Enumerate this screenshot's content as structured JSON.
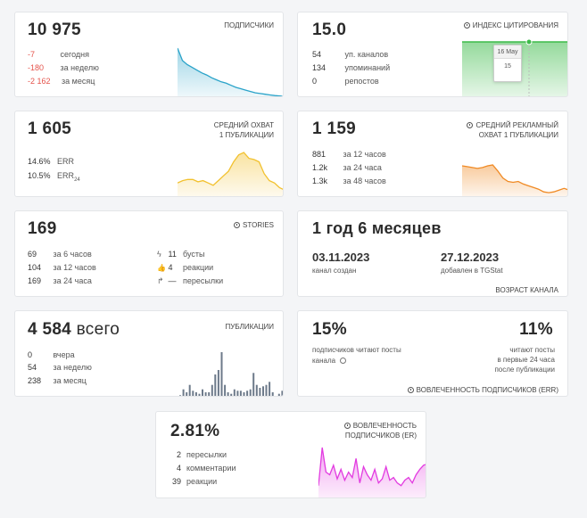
{
  "subscribers": {
    "value": "10 975",
    "caption": "ПОДПИСЧИКИ",
    "rows": [
      {
        "v": "-7",
        "l": "сегодня"
      },
      {
        "v": "-180",
        "l": "за неделю"
      },
      {
        "v": "-2 162",
        "l": "за месяц"
      }
    ],
    "chart_data": {
      "type": "area",
      "color": "#2aa3c9",
      "values": [
        70,
        52,
        46,
        42,
        38,
        34,
        31,
        27,
        24,
        21,
        19,
        16,
        13,
        11,
        9,
        7,
        5,
        4,
        3,
        2,
        1,
        0.5,
        0
      ]
    }
  },
  "citation": {
    "value": "15.0",
    "caption": "ИНДЕКС ЦИТИРОВАНИЯ",
    "icon": "info-icon",
    "rows": [
      {
        "v": "54",
        "l": "уп. каналов"
      },
      {
        "v": "134",
        "l": "упоминаний"
      },
      {
        "v": "0",
        "l": "репостов"
      }
    ],
    "tooltip_date": "16 May",
    "tooltip_value": "15",
    "color": "#3dbb4a"
  },
  "reach": {
    "value": "1 605",
    "caption_line1": "СРЕДНИЙ ОХВАТ",
    "caption_line2": "1 ПУБЛИКАЦИИ",
    "rows": [
      {
        "v": "14.6%",
        "l": "ERR"
      },
      {
        "v": "10.5%",
        "l": "ERR",
        "sub": "24"
      }
    ],
    "chart_data": {
      "type": "area",
      "color": "#f2c12e",
      "values": [
        12,
        14,
        15,
        15,
        13,
        14,
        12,
        10,
        14,
        18,
        22,
        30,
        36,
        38,
        33,
        32,
        30,
        20,
        14,
        12,
        8,
        6
      ]
    }
  },
  "ad_reach": {
    "value": "1 159",
    "caption_line1": "СРЕДНИЙ РЕКЛАМНЫЙ",
    "caption_line2": "ОХВАТ 1 ПУБЛИКАЦИИ",
    "icon": "info-icon",
    "rows": [
      {
        "v": "881",
        "l": "за 12 часов"
      },
      {
        "v": "1.2k",
        "l": "за 24 часа"
      },
      {
        "v": "1.3k",
        "l": "за 48 часов"
      }
    ],
    "chart_data": {
      "type": "area",
      "color": "#f08a24",
      "values": [
        36,
        35,
        34,
        33,
        34,
        36,
        37,
        30,
        22,
        18,
        17,
        18,
        15,
        13,
        11,
        9,
        6,
        5,
        6,
        8,
        10,
        8
      ]
    }
  },
  "stories": {
    "value": "169",
    "caption": "STORIES",
    "icon": "info-icon",
    "rows": [
      {
        "v": "69",
        "l": "за 6 часов"
      },
      {
        "v": "104",
        "l": "за 12 часов"
      },
      {
        "v": "169",
        "l": "за 24 часа"
      }
    ],
    "rows_right": [
      {
        "icon": "bolt-icon",
        "glyph": "ϟ",
        "v": "11",
        "l": "бусты"
      },
      {
        "icon": "thumbs-up-icon",
        "glyph": "👍",
        "v": "4",
        "l": "реакции"
      },
      {
        "icon": "forward-icon",
        "glyph": "↱",
        "v": "—",
        "l": "пересылки"
      }
    ]
  },
  "age": {
    "value": "1 год 6 месяцев",
    "created_date": "03.11.2023",
    "created_label": "канал создан",
    "added_date": "27.12.2023",
    "added_label": "добавлен в TGStat",
    "caption": "ВОЗРАСТ КАНАЛА"
  },
  "posts": {
    "value": "4 584",
    "suffix": " всего",
    "caption": "ПУБЛИКАЦИИ",
    "rows": [
      {
        "v": "0",
        "l": "вчера"
      },
      {
        "v": "54",
        "l": "за неделю"
      },
      {
        "v": "238",
        "l": "за месяц"
      }
    ],
    "chart_data": {
      "type": "bar",
      "color": "#6d7a8a",
      "values": [
        1,
        5,
        3,
        8,
        4,
        3,
        2,
        5,
        3,
        3,
        8,
        15,
        18,
        30,
        8,
        3,
        2,
        5,
        4,
        4,
        3,
        4,
        5,
        16,
        8,
        6,
        7,
        8,
        10,
        3,
        0,
        2,
        4
      ]
    }
  },
  "engagement_err": {
    "left_value": "15%",
    "left_label_line1": "подписчиков читают посты",
    "left_label_line2": "канала",
    "right_value": "11%",
    "right_label_line1": "читают посты",
    "right_label_line2": "в первые 24 часа",
    "right_label_line3": "после публикации",
    "caption": "ВОВЛЕЧЕННОСТЬ ПОДПИСЧИКОВ (ERR)",
    "icon": "info-icon"
  },
  "engagement_er": {
    "value": "2.81%",
    "caption_line1": "ВОВЛЕЧЕННОСТЬ",
    "caption_line2": "ПОДПИСЧИКОВ (ER)",
    "icon": "info-icon",
    "rows": [
      {
        "v": "2",
        "l": "пересылки"
      },
      {
        "v": "4",
        "l": "комментарии"
      },
      {
        "v": "39",
        "l": "реакции"
      }
    ],
    "chart_data": {
      "type": "area",
      "color": "#e23be0",
      "values": [
        10,
        38,
        20,
        18,
        25,
        15,
        22,
        14,
        20,
        16,
        30,
        12,
        24,
        18,
        14,
        22,
        12,
        15,
        24,
        14,
        16,
        12,
        10,
        14,
        16,
        12,
        18,
        22,
        25,
        26
      ]
    }
  }
}
